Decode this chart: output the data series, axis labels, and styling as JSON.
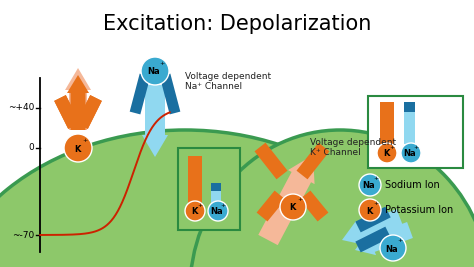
{
  "title": "Excitation: Depolarization",
  "title_fontsize": 15,
  "bg_color": "#ffffff",
  "cell_color": "#8dc86a",
  "cell_border_color": "#3a9a50",
  "orange": "#e8711a",
  "light_orange": "#f5b899",
  "blue_dark": "#1a6fa0",
  "blue_mid": "#3aaad0",
  "blue_light": "#90d8f0",
  "axis_labels": [
    "~+40",
    "0",
    "~-70"
  ],
  "legend_box_color": "#2a8a40",
  "na_label": "Sodium Ion",
  "k_label": "Potassium Ion",
  "na_channel_label": "Voltage dependent\nNa⁺ Channel",
  "k_channel_label": "Voltage dependent\nK⁺ Channel"
}
